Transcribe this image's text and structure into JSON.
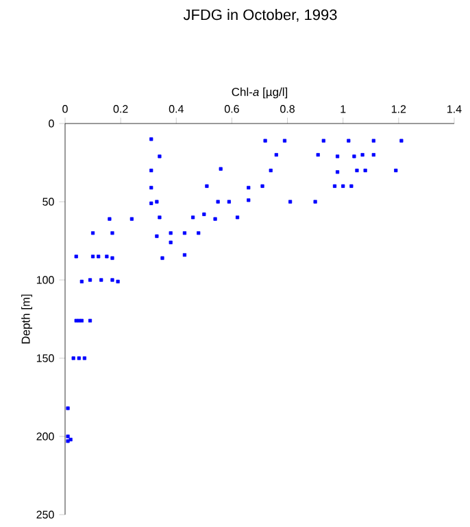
{
  "chart_data": {
    "type": "scatter",
    "title": "JFDG in October, 1993",
    "xlabel": "Chl-*a* [µg/l]",
    "ylabel": "Depth [m]",
    "x": [
      0.31,
      0.34,
      0.31,
      0.56,
      0.31,
      0.51,
      0.66,
      0.31,
      0.33,
      0.55,
      0.59,
      0.66,
      0.16,
      0.24,
      0.34,
      0.46,
      0.5,
      0.54,
      0.62,
      0.1,
      0.17,
      0.33,
      0.38,
      0.43,
      0.48,
      0.38,
      0.04,
      0.1,
      0.12,
      0.15,
      0.17,
      0.35,
      0.43,
      0.06,
      0.09,
      0.13,
      0.17,
      0.19,
      0.72,
      0.79,
      0.93,
      1.02,
      1.11,
      1.21,
      0.76,
      0.91,
      0.98,
      1.04,
      1.07,
      1.11,
      0.74,
      0.98,
      1.05,
      1.08,
      1.19,
      0.71,
      0.97,
      1.0,
      1.03,
      0.81,
      0.9,
      0.04,
      0.05,
      0.06,
      0.09,
      0.03,
      0.05,
      0.07,
      0.01,
      0.01,
      0.02,
      0.01
    ],
    "values": [
      10,
      21,
      30,
      29,
      41,
      40,
      41,
      51,
      50,
      50,
      50,
      49,
      61,
      61,
      60,
      60,
      58,
      61,
      60,
      70,
      70,
      72,
      70,
      70,
      70,
      76,
      85,
      85,
      85,
      85,
      86,
      86,
      84,
      101,
      100,
      100,
      100,
      101,
      11,
      11,
      11,
      11,
      11,
      11,
      20,
      20,
      21,
      21,
      20,
      20,
      30,
      31,
      30,
      30,
      30,
      40,
      40,
      40,
      40,
      50,
      50,
      126,
      126,
      126,
      126,
      150,
      150,
      150,
      182,
      200,
      202,
      203
    ],
    "color": "#0000ff",
    "marker": "square",
    "xlim": [
      0,
      1.4
    ],
    "ylim": [
      250,
      0
    ],
    "xticks": [
      0,
      0.2,
      0.4,
      0.6,
      0.8,
      1,
      1.2,
      1.4
    ],
    "yticks": [
      0,
      50,
      100,
      150,
      200,
      250
    ],
    "grid": false
  }
}
